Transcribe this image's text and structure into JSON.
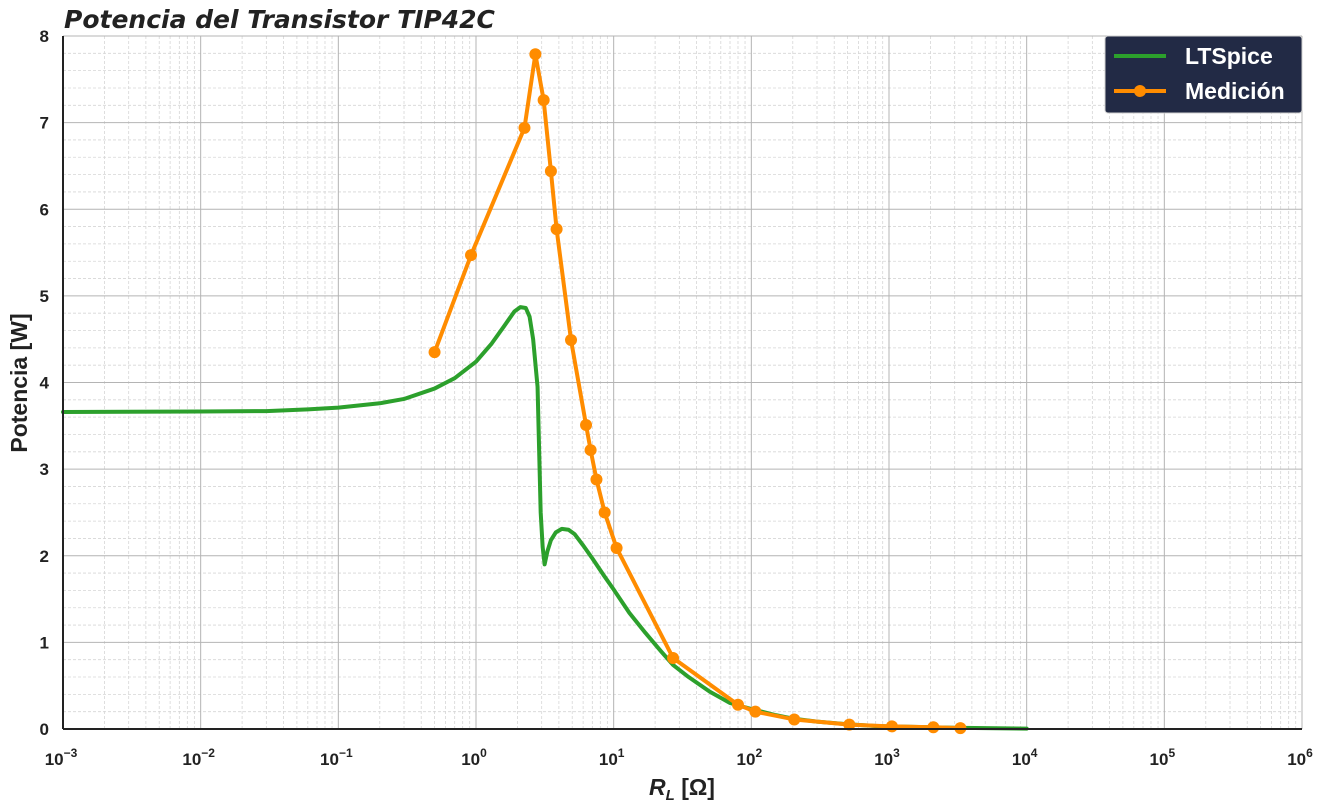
{
  "chart_data": {
    "type": "line",
    "title": "Potencia del Transistor TIP42C",
    "xlabel": {
      "main": "R",
      "sub": "L",
      "unit": " [Ω]"
    },
    "ylabel": "Potencia [W]",
    "xscale": "log",
    "xlim": [
      0.001,
      1000000
    ],
    "ylim": [
      0,
      8
    ],
    "x_ticks": [
      {
        "base": "10",
        "exp": "−3",
        "value": 0.001
      },
      {
        "base": "10",
        "exp": "−2",
        "value": 0.01
      },
      {
        "base": "10",
        "exp": "−1",
        "value": 0.1
      },
      {
        "base": "10",
        "exp": "0",
        "value": 1
      },
      {
        "base": "10",
        "exp": "1",
        "value": 10
      },
      {
        "base": "10",
        "exp": "2",
        "value": 100
      },
      {
        "base": "10",
        "exp": "3",
        "value": 1000
      },
      {
        "base": "10",
        "exp": "4",
        "value": 10000
      },
      {
        "base": "10",
        "exp": "5",
        "value": 100000
      },
      {
        "base": "10",
        "exp": "6",
        "value": 1000000
      }
    ],
    "y_ticks": [
      "0",
      "1",
      "2",
      "3",
      "4",
      "5",
      "6",
      "7",
      "8"
    ],
    "grid": true,
    "legend_position": "top-right",
    "legend_bg": "#222a45",
    "series": [
      {
        "name": "LTSpice",
        "color": "#2ca02c",
        "markers": false,
        "x": [
          0.001,
          0.01,
          0.03,
          0.06,
          0.1,
          0.2,
          0.3,
          0.5,
          0.7,
          1.0,
          1.3,
          1.6,
          1.9,
          2.1,
          2.3,
          2.45,
          2.6,
          2.8,
          2.95,
          3.05,
          3.15,
          3.3,
          3.5,
          3.8,
          4.2,
          4.7,
          5.2,
          6,
          7,
          8.5,
          10,
          13,
          17,
          22,
          27,
          35,
          50,
          70,
          100,
          150,
          200,
          300,
          500,
          800,
          1000,
          2000,
          3000,
          5000,
          10000
        ],
        "y": [
          3.66,
          3.665,
          3.67,
          3.69,
          3.71,
          3.76,
          3.81,
          3.93,
          4.05,
          4.24,
          4.45,
          4.65,
          4.82,
          4.87,
          4.86,
          4.76,
          4.5,
          3.95,
          2.5,
          2.1,
          1.9,
          2.05,
          2.18,
          2.27,
          2.31,
          2.3,
          2.25,
          2.12,
          1.97,
          1.77,
          1.61,
          1.34,
          1.11,
          0.9,
          0.74,
          0.6,
          0.43,
          0.3,
          0.23,
          0.16,
          0.12,
          0.085,
          0.055,
          0.035,
          0.03,
          0.02,
          0.015,
          0.01,
          0.005
        ]
      },
      {
        "name": "Medición",
        "color": "#ff8c00",
        "markers": true,
        "x": [
          0.5,
          0.92,
          2.25,
          2.7,
          3.1,
          3.5,
          3.85,
          4.9,
          6.3,
          6.8,
          7.5,
          8.6,
          10.5,
          27,
          80,
          107,
          205,
          515,
          1050,
          2100,
          3300
        ],
        "y": [
          4.35,
          5.47,
          6.94,
          7.79,
          7.26,
          6.44,
          5.77,
          4.49,
          3.51,
          3.22,
          2.88,
          2.5,
          2.09,
          0.82,
          0.28,
          0.2,
          0.11,
          0.05,
          0.03,
          0.02,
          0.01
        ]
      }
    ]
  }
}
